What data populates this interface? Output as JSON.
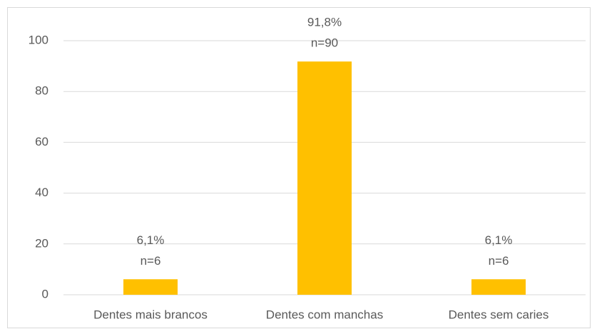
{
  "chart_data": {
    "type": "bar",
    "categories": [
      "Dentes mais brancos",
      "Dentes com manchas",
      "Dentes sem caries"
    ],
    "values": [
      6.1,
      91.8,
      6.1
    ],
    "value_labels": [
      "6,1%",
      "91,8%",
      "6,1%"
    ],
    "count_labels": [
      "n=6",
      "n=90",
      "n=6"
    ],
    "color": "#FFC000",
    "ylim": [
      0,
      100
    ],
    "yticks": [
      0,
      20,
      40,
      60,
      80,
      100
    ],
    "grid": true
  }
}
